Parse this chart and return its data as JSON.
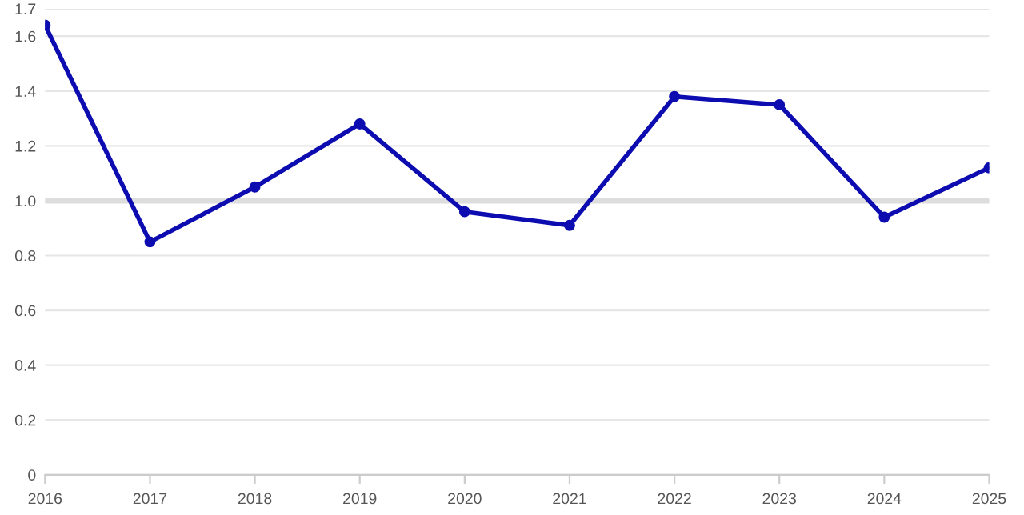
{
  "chart_data": {
    "type": "line",
    "categories": [
      "2016",
      "2017",
      "2018",
      "2019",
      "2020",
      "2021",
      "2022",
      "2023",
      "2024",
      "2025"
    ],
    "series": [
      {
        "color": "#0c0cb0",
        "values": [
          1.64,
          0.85,
          1.05,
          1.28,
          0.96,
          0.91,
          1.38,
          1.35,
          0.94,
          1.12
        ]
      }
    ],
    "ylim": [
      0,
      1.7
    ],
    "yticks": [
      0,
      0.2,
      0.4,
      0.6,
      0.8,
      {
        "value": 1.0,
        "label": "1.0"
      },
      1.2,
      1.4,
      1.6,
      1.7
    ],
    "ref_lines": [
      {
        "axis": "y",
        "value": 1.0,
        "color": "#dddddd"
      }
    ],
    "grid": "y",
    "marker": "circle",
    "line_style": "solid",
    "legend": false
  }
}
